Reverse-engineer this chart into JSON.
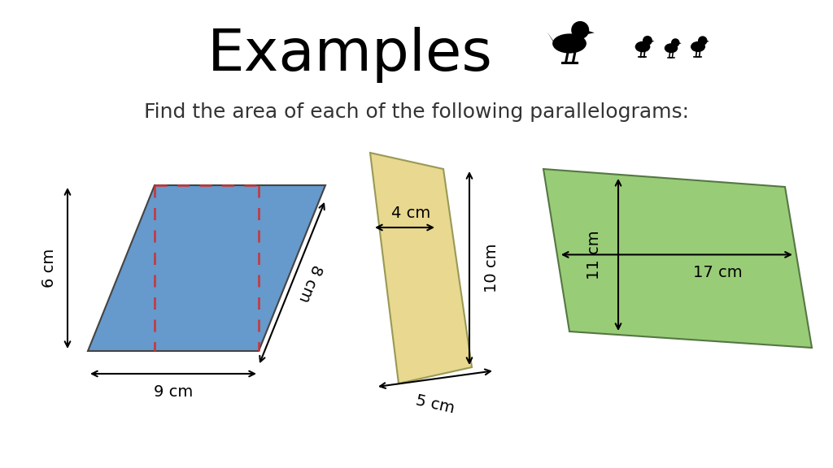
{
  "title": "Examples",
  "subtitle": "Find the area of each of the following parallelograms:",
  "bg_color": "#ffffff",
  "title_fontsize": 52,
  "subtitle_fontsize": 18,
  "para1": {
    "color": "#6699cc",
    "edge_color": "#444444",
    "dashed_color": "#cc3333",
    "label_base": "9 cm",
    "label_height": "6 cm",
    "label_slant": "8 cm"
  },
  "para2": {
    "color": "#e8d890",
    "edge_color": "#999955",
    "label_top": "4 cm",
    "label_bottom": "5 cm",
    "label_side": "10 cm"
  },
  "para3": {
    "color": "#99cc77",
    "edge_color": "#557744",
    "label_horiz": "17 cm",
    "label_vert": "11 cm"
  }
}
